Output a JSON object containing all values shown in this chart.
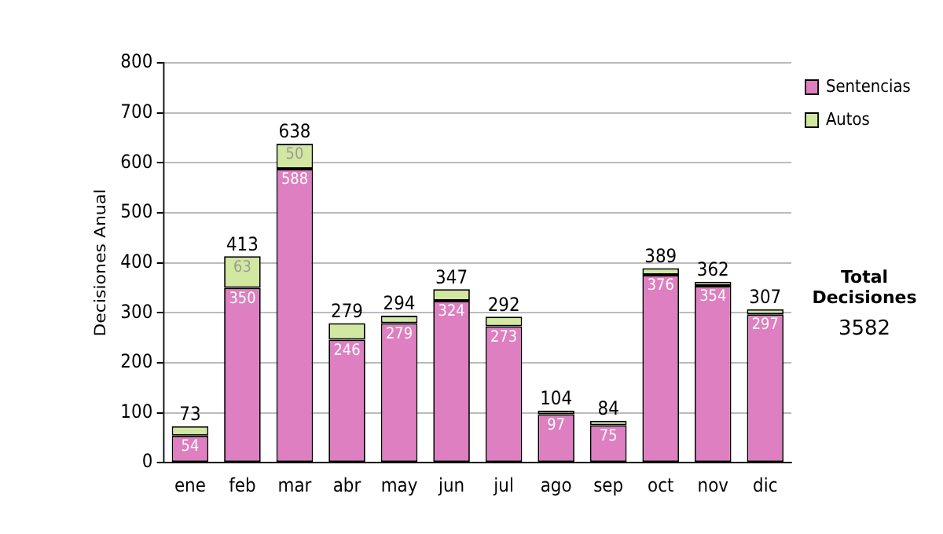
{
  "chart_data": {
    "type": "bar",
    "ylabel": "Decisiones Anual",
    "categories": [
      "ene",
      "feb",
      "mar",
      "abr",
      "may",
      "jun",
      "jul",
      "ago",
      "sep",
      "oct",
      "nov",
      "dic"
    ],
    "series": [
      {
        "name": "Sentencias",
        "color": "#dd7fc0",
        "values": [
          54,
          350,
          588,
          246,
          279,
          324,
          273,
          97,
          75,
          376,
          354,
          297
        ],
        "value_labels": [
          "54",
          "350",
          "588",
          "246",
          "279",
          "324",
          "273",
          "97",
          "75",
          "376",
          "354",
          "297"
        ]
      },
      {
        "name": "Autos",
        "color": "#d2e8a0",
        "values": [
          19,
          63,
          50,
          33,
          15,
          23,
          19,
          7,
          9,
          13,
          8,
          10
        ],
        "value_labels": [
          null,
          "63",
          "50",
          null,
          null,
          null,
          null,
          null,
          null,
          null,
          null,
          null
        ]
      }
    ],
    "stacked": true,
    "totals": [
      "73",
      "413",
      "638",
      "279",
      "294",
      "347",
      "292",
      "104",
      "84",
      "389",
      "362",
      "307"
    ],
    "ylim": [
      0,
      800
    ],
    "yticks": [
      0,
      100,
      200,
      300,
      400,
      500,
      600,
      700,
      800
    ],
    "grid": "y",
    "legend": "right",
    "annotations": [
      "Total Decisiones",
      "3582"
    ]
  }
}
